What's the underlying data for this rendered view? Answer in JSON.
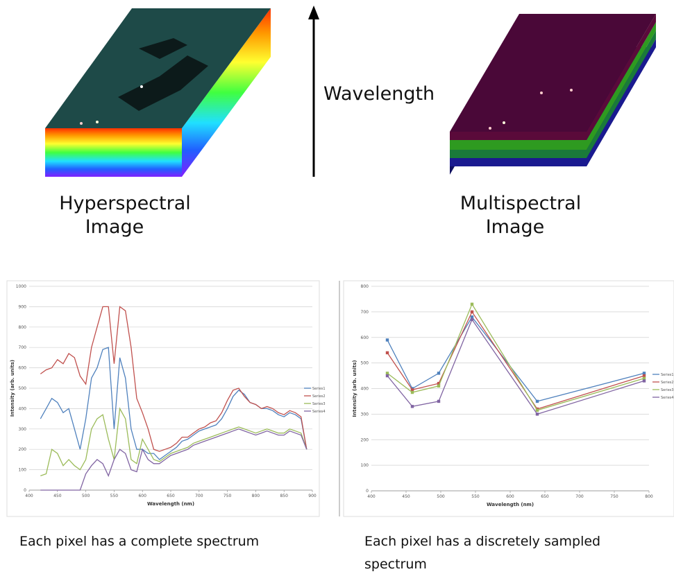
{
  "diagram": {
    "arrow_label": "Wavelength",
    "left_label": [
      "Hyperspectral",
      "Image"
    ],
    "right_label": [
      "Multispectral",
      "Image"
    ],
    "left_caption": [
      "Each pixel has a complete spectrum"
    ],
    "right_caption": [
      "Each pixel has a discretely sampled",
      "spectrum"
    ]
  },
  "chart_data": [
    {
      "type": "line",
      "x_label": "Wavelength (nm)",
      "y_label": "Intensity (arb. units)",
      "xlim": [
        400,
        900
      ],
      "xticks": [
        400,
        450,
        500,
        550,
        600,
        650,
        700,
        750,
        800,
        850,
        900
      ],
      "ylim": [
        0,
        1000
      ],
      "yticks": [
        0,
        100,
        200,
        300,
        400,
        500,
        600,
        700,
        800,
        900,
        1000
      ],
      "grid": true,
      "markers": false,
      "legend": "right",
      "x": [
        420,
        430,
        440,
        450,
        460,
        470,
        480,
        490,
        500,
        510,
        520,
        530,
        540,
        550,
        560,
        570,
        580,
        590,
        600,
        610,
        620,
        630,
        640,
        650,
        660,
        670,
        680,
        690,
        700,
        710,
        720,
        730,
        740,
        750,
        760,
        770,
        780,
        790,
        800,
        810,
        820,
        830,
        840,
        850,
        860,
        870,
        880,
        890
      ],
      "series": [
        {
          "name": "Series1",
          "color": "#4f81bd",
          "values": [
            350,
            400,
            450,
            430,
            380,
            400,
            300,
            200,
            350,
            550,
            600,
            690,
            700,
            300,
            650,
            550,
            300,
            200,
            200,
            180,
            180,
            150,
            170,
            190,
            210,
            240,
            250,
            270,
            290,
            300,
            310,
            320,
            350,
            400,
            460,
            490,
            470,
            430,
            420,
            400,
            400,
            390,
            370,
            360,
            380,
            370,
            350,
            200
          ]
        },
        {
          "name": "Series2",
          "color": "#c0504d",
          "values": [
            570,
            590,
            600,
            640,
            620,
            670,
            650,
            560,
            520,
            700,
            800,
            900,
            900,
            620,
            900,
            880,
            700,
            450,
            380,
            300,
            200,
            190,
            200,
            210,
            230,
            260,
            260,
            280,
            300,
            310,
            330,
            340,
            380,
            440,
            490,
            500,
            460,
            430,
            420,
            400,
            410,
            400,
            380,
            370,
            390,
            380,
            360,
            200
          ]
        },
        {
          "name": "Series3",
          "color": "#9bbb59",
          "values": [
            70,
            80,
            200,
            180,
            120,
            150,
            120,
            100,
            150,
            300,
            350,
            370,
            250,
            150,
            400,
            350,
            150,
            130,
            250,
            200,
            150,
            140,
            160,
            180,
            190,
            200,
            210,
            230,
            240,
            250,
            260,
            270,
            280,
            290,
            300,
            310,
            300,
            290,
            280,
            290,
            300,
            290,
            280,
            280,
            300,
            290,
            280,
            200
          ]
        },
        {
          "name": "Series4",
          "color": "#8064a2",
          "values": [
            0,
            0,
            0,
            0,
            0,
            0,
            0,
            0,
            80,
            120,
            150,
            130,
            70,
            150,
            200,
            180,
            100,
            90,
            200,
            150,
            130,
            130,
            150,
            170,
            180,
            190,
            200,
            220,
            230,
            240,
            250,
            260,
            270,
            280,
            290,
            300,
            290,
            280,
            270,
            280,
            290,
            280,
            270,
            270,
            290,
            280,
            270,
            200
          ]
        }
      ]
    },
    {
      "type": "line",
      "x_label": "Wavelength (nm)",
      "y_label": "Intensity (arb. units)",
      "xlim": [
        400,
        800
      ],
      "xticks": [
        400,
        450,
        500,
        550,
        600,
        650,
        700,
        750,
        800
      ],
      "ylim": [
        0,
        800
      ],
      "yticks": [
        0,
        100,
        200,
        300,
        400,
        500,
        600,
        700,
        800
      ],
      "grid": true,
      "markers": true,
      "legend": "right",
      "x": [
        423,
        459,
        497,
        545,
        639,
        793
      ],
      "series": [
        {
          "name": "Series1",
          "color": "#4f81bd",
          "values": [
            590,
            400,
            460,
            680,
            350,
            460
          ]
        },
        {
          "name": "Series2",
          "color": "#c0504d",
          "values": [
            540,
            395,
            420,
            700,
            320,
            450
          ]
        },
        {
          "name": "Series3",
          "color": "#9bbb59",
          "values": [
            460,
            385,
            410,
            730,
            315,
            440
          ]
        },
        {
          "name": "Series4",
          "color": "#8064a2",
          "values": [
            450,
            330,
            350,
            670,
            300,
            430
          ]
        }
      ]
    }
  ]
}
